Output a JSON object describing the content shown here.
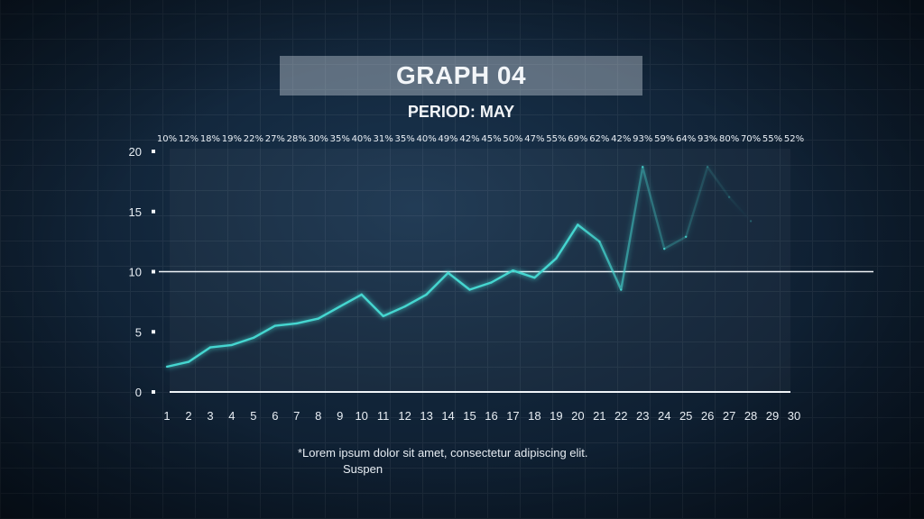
{
  "title": "GRAPH 04",
  "subtitle": "PERIOD: MAY",
  "footnote_line1": "*Lorem ipsum dolor sit amet, consectetur adipiscing elit.",
  "footnote_line2": "Suspen",
  "colors": {
    "line": "#45d6d0",
    "axis": "#f0f4f8",
    "background": "#0d1b2a"
  },
  "chart_data": {
    "type": "line",
    "x": [
      1,
      2,
      3,
      4,
      5,
      6,
      7,
      8,
      9,
      10,
      11,
      12,
      13,
      14,
      15,
      16,
      17,
      18,
      19,
      20,
      21,
      22,
      23,
      24,
      25,
      26,
      27,
      28,
      29,
      30
    ],
    "values": [
      2.1,
      2.5,
      3.7,
      3.9,
      4.5,
      5.5,
      5.7,
      6.1,
      7.1,
      8.1,
      6.3,
      7.1,
      8.1,
      9.9,
      8.5,
      9.1,
      10.1,
      9.5,
      11.1,
      13.9,
      12.5,
      8.5,
      18.7,
      11.9,
      12.9,
      18.7,
      16.2,
      14.2,
      null,
      null
    ],
    "percent_labels": [
      "10%",
      "12%",
      "18%",
      "19%",
      "22%",
      "27%",
      "28%",
      "30%",
      "35%",
      "40%",
      "31%",
      "35%",
      "40%",
      "49%",
      "42%",
      "45%",
      "50%",
      "47%",
      "55%",
      "69%",
      "62%",
      "42%",
      "93%",
      "59%",
      "64%",
      "93%",
      "80%",
      "70%",
      "55%",
      "52%"
    ],
    "y_ticks": [
      0,
      5,
      10,
      15,
      20
    ],
    "ylim": [
      0,
      20
    ],
    "xlim": [
      1,
      30
    ],
    "reference_line": 10,
    "grid": false,
    "legend": "none"
  }
}
